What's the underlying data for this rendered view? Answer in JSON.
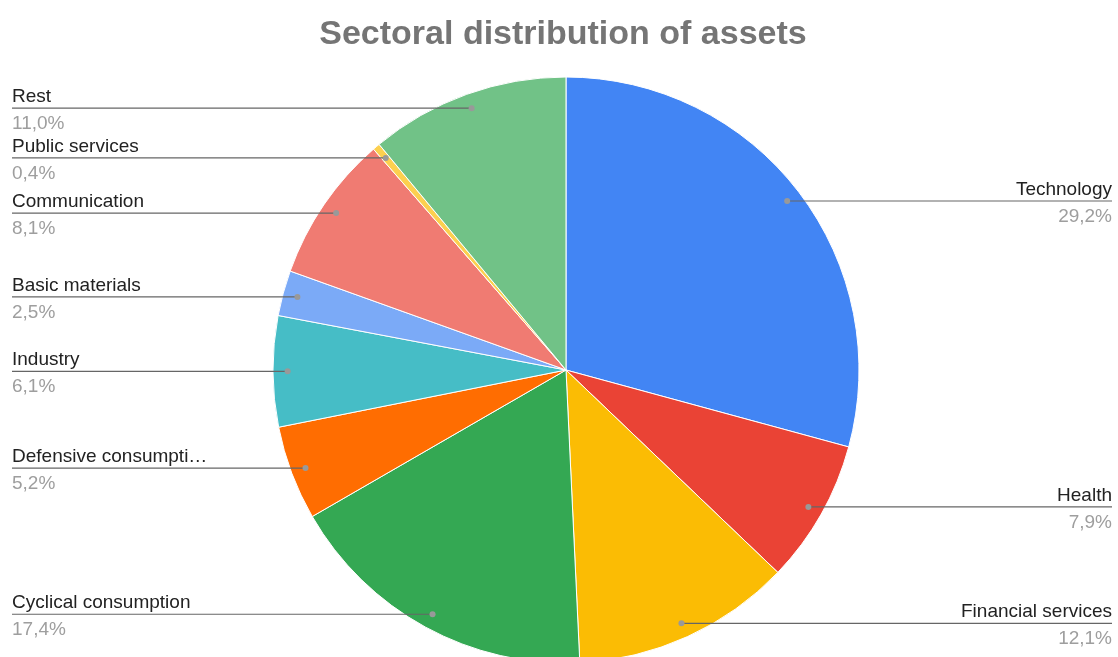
{
  "chart_data": {
    "type": "pie",
    "title": "Sectoral distribution of assets",
    "categories": [
      "Technology",
      "Health",
      "Financial services",
      "Cyclical consumption",
      "Defensive consumpti…",
      "Industry",
      "Basic materials",
      "Communication",
      "Public services",
      "Rest"
    ],
    "values": [
      29.2,
      7.9,
      12.1,
      17.4,
      5.2,
      6.1,
      2.5,
      8.1,
      0.4,
      11.0
    ],
    "value_labels": [
      "29,2%",
      "7,9%",
      "12,1%",
      "17,4%",
      "5,2%",
      "6,1%",
      "2,5%",
      "8,1%",
      "0,4%",
      "11,0%"
    ],
    "colors": [
      "#4285f4",
      "#ea4335",
      "#fbbc04",
      "#34a853",
      "#ff6d01",
      "#46bdc6",
      "#7baaf7",
      "#f07b72",
      "#fcd04f",
      "#71c287"
    ]
  }
}
